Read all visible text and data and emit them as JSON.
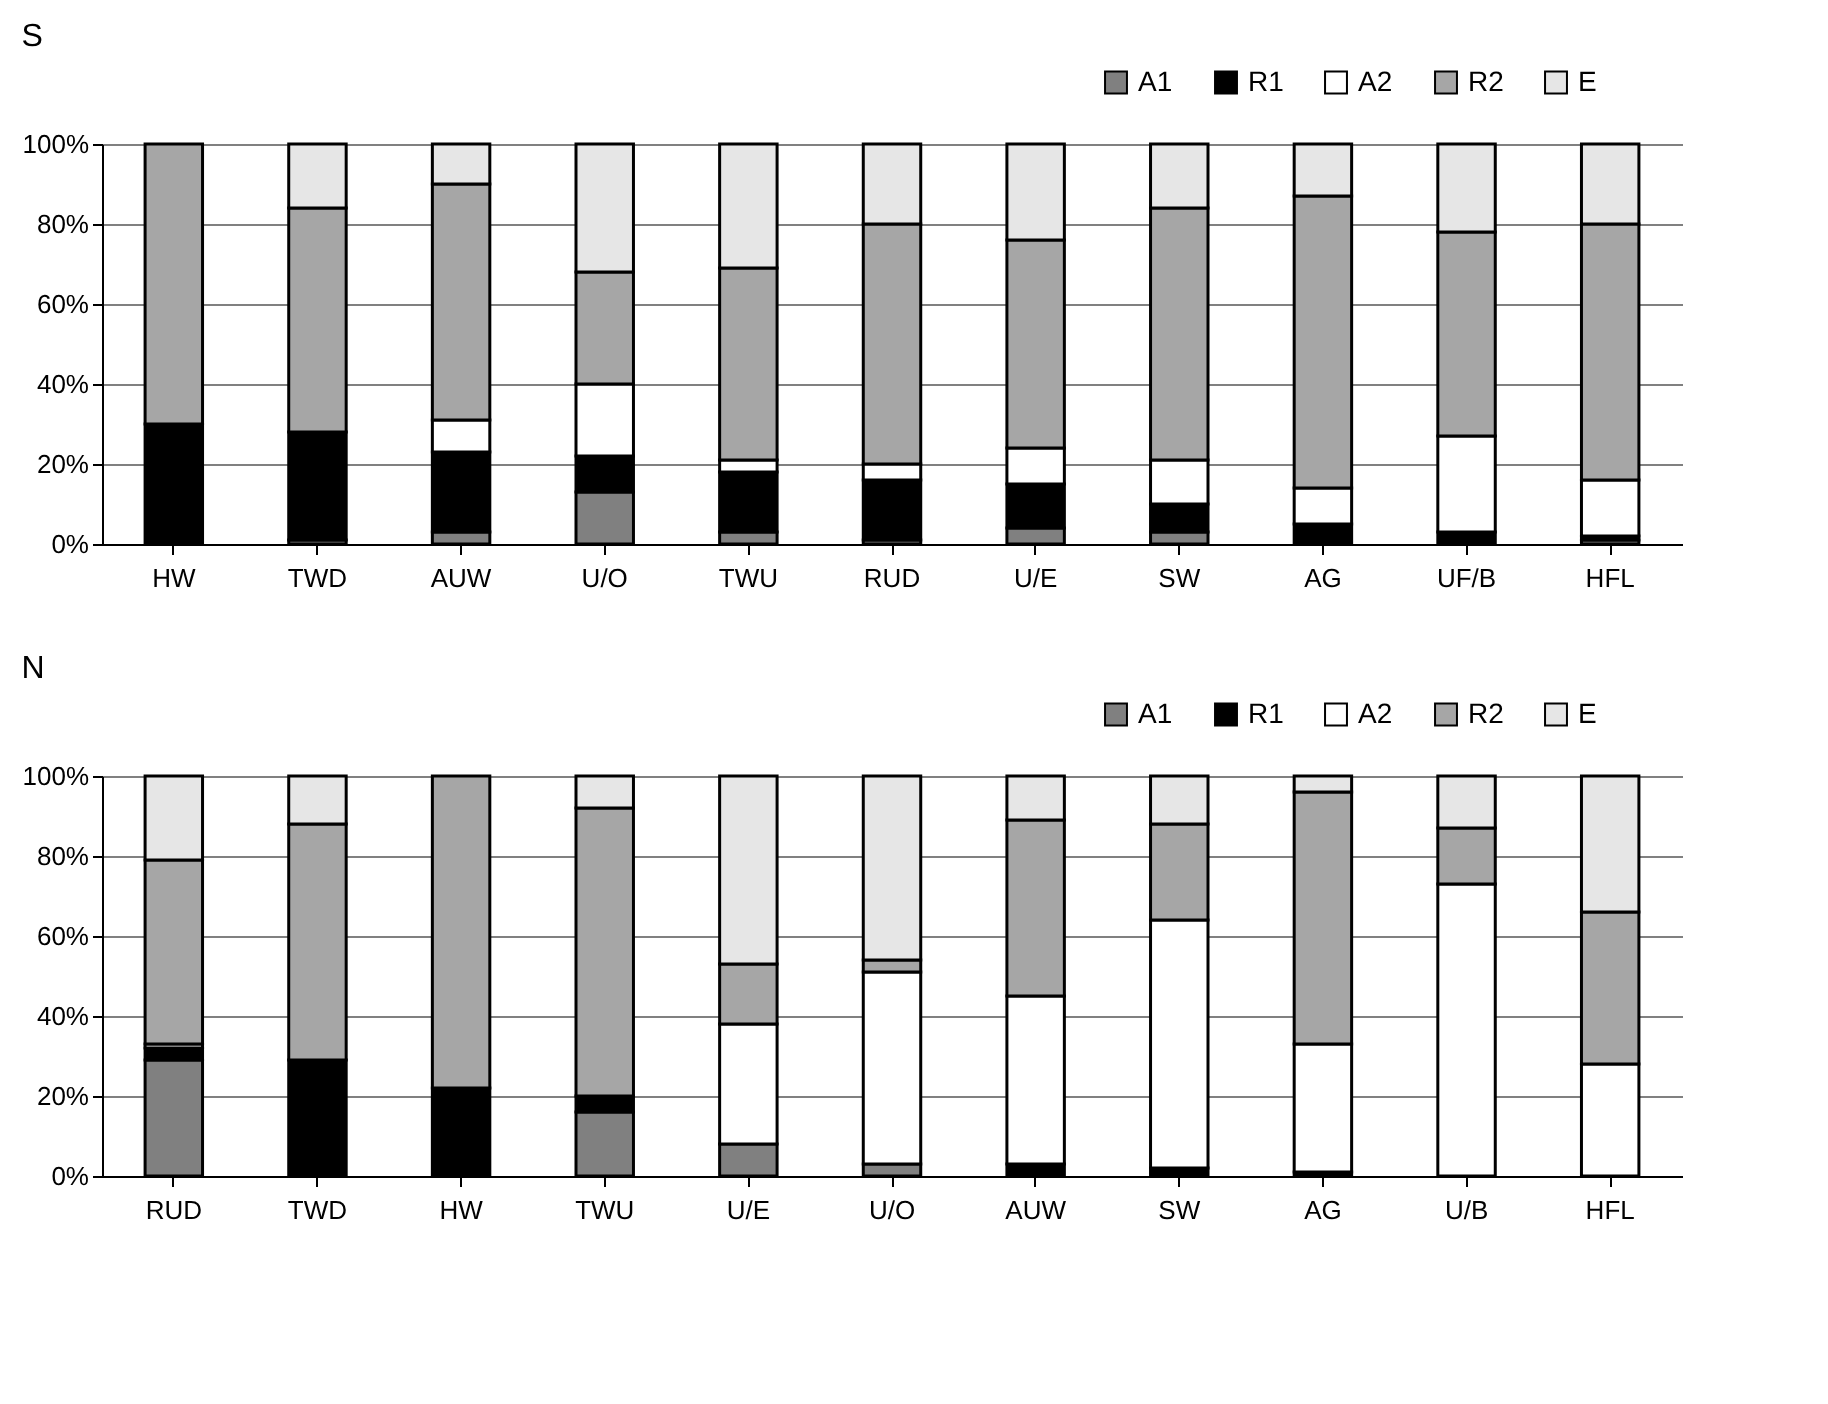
{
  "chart_data": [
    {
      "type": "bar",
      "title": "S",
      "stacked": true,
      "categories": [
        "HW",
        "TWD",
        "AUW",
        "U/O",
        "TWU",
        "RUD",
        "U/E",
        "SW",
        "AG",
        "UF/B",
        "HFL"
      ],
      "series": [
        {
          "name": "A1",
          "color": "#808080",
          "values": [
            0,
            1,
            3,
            13,
            3,
            1,
            4,
            3,
            0,
            0,
            1
          ]
        },
        {
          "name": "R1",
          "color": "#000000",
          "values": [
            30,
            27,
            20,
            9,
            15,
            15,
            11,
            7,
            5,
            3,
            1
          ]
        },
        {
          "name": "A2",
          "color": "#ffffff",
          "values": [
            0,
            0,
            8,
            18,
            3,
            4,
            9,
            11,
            9,
            24,
            14
          ]
        },
        {
          "name": "R2",
          "color": "#a6a6a6",
          "values": [
            70,
            56,
            59,
            28,
            48,
            60,
            52,
            63,
            73,
            51,
            64
          ]
        },
        {
          "name": "E",
          "color": "#e6e6e6",
          "values": [
            0,
            16,
            10,
            32,
            31,
            20,
            24,
            16,
            13,
            22,
            20
          ]
        }
      ],
      "ylim": [
        0,
        100
      ],
      "yticks": [
        {
          "value": 0,
          "label": "0%"
        },
        {
          "value": 20,
          "label": "20%"
        },
        {
          "value": 40,
          "label": "40%"
        },
        {
          "value": 60,
          "label": "60%"
        },
        {
          "value": 80,
          "label": "80%"
        },
        {
          "value": 100,
          "label": "100%"
        }
      ],
      "grid": "y",
      "legend": "top right"
    },
    {
      "type": "bar",
      "title": "N",
      "stacked": true,
      "categories": [
        "RUD",
        "TWD",
        "HW",
        "TWU",
        "U/E",
        "U/O",
        "AUW",
        "SW",
        "AG",
        "U/B",
        "HFL"
      ],
      "series": [
        {
          "name": "A1",
          "color": "#808080",
          "values": [
            29,
            0,
            0,
            16,
            8,
            3,
            0,
            0,
            0,
            0,
            0
          ]
        },
        {
          "name": "R1",
          "color": "#000000",
          "values": [
            3,
            29,
            22,
            4,
            0,
            0,
            3,
            2,
            1,
            0,
            0
          ]
        },
        {
          "name": "A2",
          "color": "#ffffff",
          "values": [
            1,
            0,
            0,
            0,
            30,
            48,
            42,
            62,
            32,
            73,
            28
          ]
        },
        {
          "name": "R2",
          "color": "#a6a6a6",
          "values": [
            46,
            59,
            78,
            72,
            15,
            3,
            44,
            24,
            63,
            14,
            38
          ]
        },
        {
          "name": "E",
          "color": "#e6e6e6",
          "values": [
            21,
            12,
            0,
            8,
            47,
            46,
            11,
            12,
            4,
            13,
            34
          ]
        }
      ],
      "ylim": [
        0,
        100
      ],
      "yticks": [
        {
          "value": 0,
          "label": "0%"
        },
        {
          "value": 20,
          "label": "20%"
        },
        {
          "value": 40,
          "label": "40%"
        },
        {
          "value": 60,
          "label": "60%"
        },
        {
          "value": 80,
          "label": "80%"
        },
        {
          "value": 100,
          "label": "100%"
        }
      ],
      "grid": "y",
      "legend": "top right"
    }
  ]
}
